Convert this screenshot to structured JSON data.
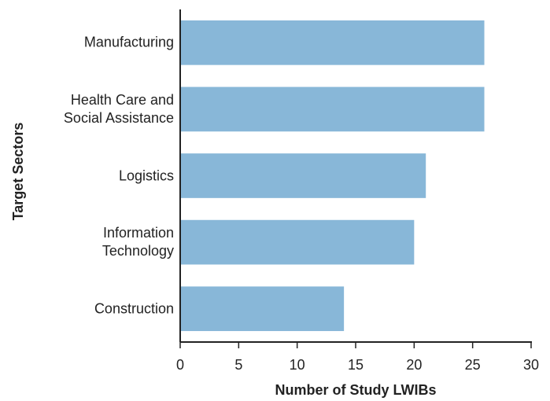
{
  "chart_data": {
    "type": "barh",
    "categories": [
      "Manufacturing",
      "Health Care and\nSocial Assistance",
      "Logistics",
      "Information\nTechnology",
      "Construction"
    ],
    "values": [
      26,
      26,
      21,
      20,
      14
    ],
    "color": "#88b7d8",
    "xlim": [
      0,
      30
    ],
    "xticks": [
      0,
      5,
      10,
      15,
      20,
      25,
      30
    ],
    "xlabel": "Number of Study LWIBs",
    "ylabel": "Target Sectors"
  }
}
